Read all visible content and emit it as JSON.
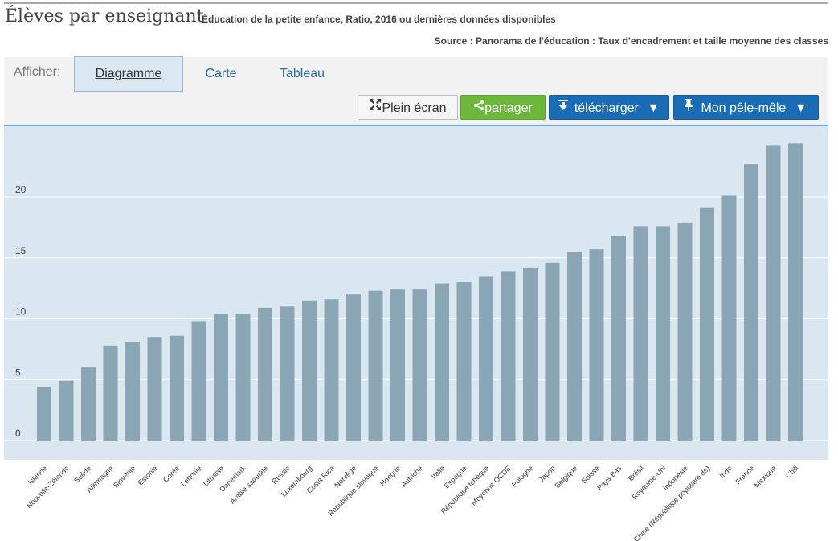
{
  "header": {
    "title": "Élèves par enseignant",
    "subtitle": "Éducation de la petite enfance, Ratio, 2016 ou dernières données disponibles",
    "source": "Source : Panorama de l'éducation : Taux d'encadrement et taille moyenne des classes"
  },
  "toolbar": {
    "afficher_label": "Afficher:",
    "tabs": [
      {
        "label": "Diagramme",
        "active": true
      },
      {
        "label": "Carte",
        "active": false
      },
      {
        "label": "Tableau",
        "active": false
      }
    ],
    "buttons": {
      "fullscreen": "Plein écran",
      "share": "partager",
      "download": "télécharger",
      "mypage": "Mon pêle-mêle"
    },
    "icons": {
      "fullscreen": "expand-arrows-icon",
      "share": "share-icon",
      "download": "download-icon",
      "mypage": "pin-icon",
      "caret": "caret-down-icon"
    }
  },
  "colors": {
    "bar": "#8aa6b4",
    "plot_background": "#dbe7f0",
    "share_button": "#6db83a",
    "action_button": "#1a6db5",
    "link": "#1f68ad"
  },
  "chart_data": {
    "type": "bar",
    "title": "",
    "xlabel": "",
    "ylabel": "",
    "ylim": [
      0,
      25
    ],
    "yticks": [
      0,
      5,
      10,
      15,
      20
    ],
    "grid": true,
    "categories": [
      "Islande",
      "Nouvelle-Zélande",
      "Suède",
      "Allemagne",
      "Slovénie",
      "Estonie",
      "Corée",
      "Lettonie",
      "Lituanie",
      "Danemark",
      "Arabie saoudite",
      "Russie",
      "Luxembourg",
      "Costa Rica",
      "Norvège",
      "République slovaque",
      "Hongrie",
      "Autriche",
      "Italie",
      "Espagne",
      "République tchèque",
      "Moyenne OCDE",
      "Pologne",
      "Japon",
      "Belgique",
      "Suisse",
      "Pays-Bas",
      "Brésil",
      "Royaume-Uni",
      "Indonésie",
      "Chine (République populaire de)",
      "Inde",
      "France",
      "Mexique",
      "Chili"
    ],
    "values": [
      4.4,
      4.9,
      6.0,
      7.8,
      8.1,
      8.5,
      8.6,
      9.8,
      10.4,
      10.4,
      10.9,
      11.0,
      11.5,
      11.6,
      12.0,
      12.3,
      12.4,
      12.4,
      12.9,
      13.0,
      13.5,
      13.9,
      14.2,
      14.6,
      15.5,
      15.7,
      16.8,
      17.6,
      17.6,
      17.9,
      19.1,
      20.1,
      22.7,
      24.2,
      24.4
    ]
  }
}
